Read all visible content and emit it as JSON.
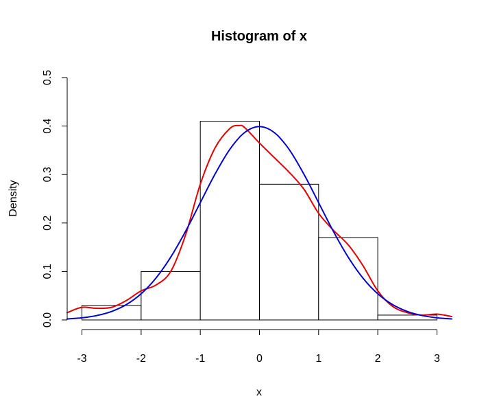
{
  "chart_data": {
    "type": "bar",
    "title": "Histogram of x",
    "xlabel": "x",
    "ylabel": "Density",
    "xlim": [
      -3.25,
      3.25
    ],
    "ylim": [
      0,
      0.5
    ],
    "x_ticks": [
      -3,
      -2,
      -1,
      0,
      1,
      2,
      3
    ],
    "y_ticks": [
      0.0,
      0.1,
      0.2,
      0.3,
      0.4,
      0.5
    ],
    "y_tick_labels": [
      "0.0",
      "0.1",
      "0.2",
      "0.3",
      "0.4",
      "0.5"
    ],
    "grid": false,
    "bins": [
      {
        "from": -3,
        "to": -2,
        "density": 0.03
      },
      {
        "from": -2,
        "to": -1,
        "density": 0.1
      },
      {
        "from": -1,
        "to": 0,
        "density": 0.41
      },
      {
        "from": 0,
        "to": 1,
        "density": 0.28
      },
      {
        "from": 1,
        "to": 2,
        "density": 0.17
      },
      {
        "from": 2,
        "to": 3,
        "density": 0.01
      }
    ],
    "series": [
      {
        "color": "#e00000",
        "x": [
          -3.25,
          -3.0,
          -2.75,
          -2.5,
          -2.25,
          -2.0,
          -1.75,
          -1.5,
          -1.25,
          -1.0,
          -0.75,
          -0.5,
          -0.35,
          -0.25,
          0.0,
          0.25,
          0.5,
          0.75,
          1.0,
          1.25,
          1.5,
          1.75,
          2.0,
          2.25,
          2.5,
          2.75,
          3.0,
          3.25
        ],
        "y": [
          0.015,
          0.026,
          0.024,
          0.026,
          0.04,
          0.06,
          0.072,
          0.1,
          0.175,
          0.28,
          0.355,
          0.395,
          0.401,
          0.397,
          0.365,
          0.335,
          0.305,
          0.27,
          0.22,
          0.185,
          0.155,
          0.112,
          0.06,
          0.028,
          0.015,
          0.01,
          0.012,
          0.007
        ]
      },
      {
        "color": "#0000cc",
        "x": [
          -3.25,
          -3.0,
          -2.75,
          -2.5,
          -2.25,
          -2.0,
          -1.75,
          -1.5,
          -1.25,
          -1.0,
          -0.75,
          -0.5,
          -0.25,
          0.0,
          0.25,
          0.5,
          0.75,
          1.0,
          1.25,
          1.5,
          1.75,
          2.0,
          2.25,
          2.5,
          2.75,
          3.0,
          3.25
        ],
        "y": [
          0.002,
          0.0044,
          0.0091,
          0.0175,
          0.0317,
          0.054,
          0.0863,
          0.1295,
          0.1826,
          0.242,
          0.3011,
          0.3521,
          0.3867,
          0.3989,
          0.3867,
          0.3521,
          0.3011,
          0.242,
          0.1826,
          0.1295,
          0.0863,
          0.054,
          0.0317,
          0.0175,
          0.0091,
          0.0044,
          0.002
        ]
      }
    ]
  }
}
